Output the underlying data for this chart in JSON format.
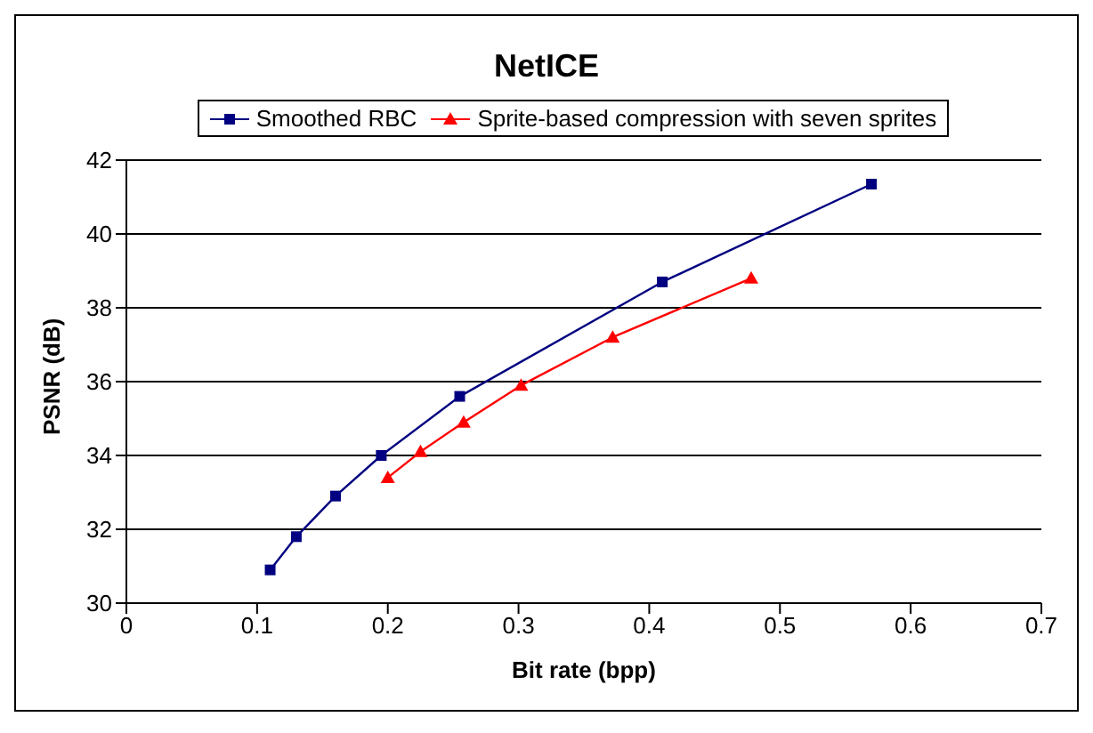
{
  "chart_data": {
    "type": "line",
    "title": "NetICE",
    "xlabel": "Bit rate (bpp)",
    "ylabel": "PSNR (dB)",
    "series": [
      {
        "name": "Smoothed RBC",
        "color": "#000080",
        "marker": "square",
        "x": [
          0.11,
          0.13,
          0.16,
          0.195,
          0.255,
          0.41,
          0.57
        ],
        "values": [
          30.9,
          31.8,
          32.9,
          34.0,
          35.6,
          38.7,
          41.35
        ]
      },
      {
        "name": "Sprite-based compression with seven sprites",
        "color": "#ff0000",
        "marker": "triangle",
        "x": [
          0.2,
          0.225,
          0.258,
          0.302,
          0.372,
          0.478
        ],
        "values": [
          33.4,
          34.1,
          34.9,
          35.9,
          37.2,
          38.8
        ]
      }
    ],
    "xlim": [
      0,
      0.7
    ],
    "xticks": [
      0,
      0.1,
      0.2,
      0.3,
      0.4,
      0.5,
      0.6,
      0.7
    ],
    "ylim": [
      30,
      42
    ],
    "yticks": [
      30,
      32,
      34,
      36,
      38,
      40,
      42
    ],
    "grid": "y",
    "legend": "top",
    "line_style": "solid"
  }
}
